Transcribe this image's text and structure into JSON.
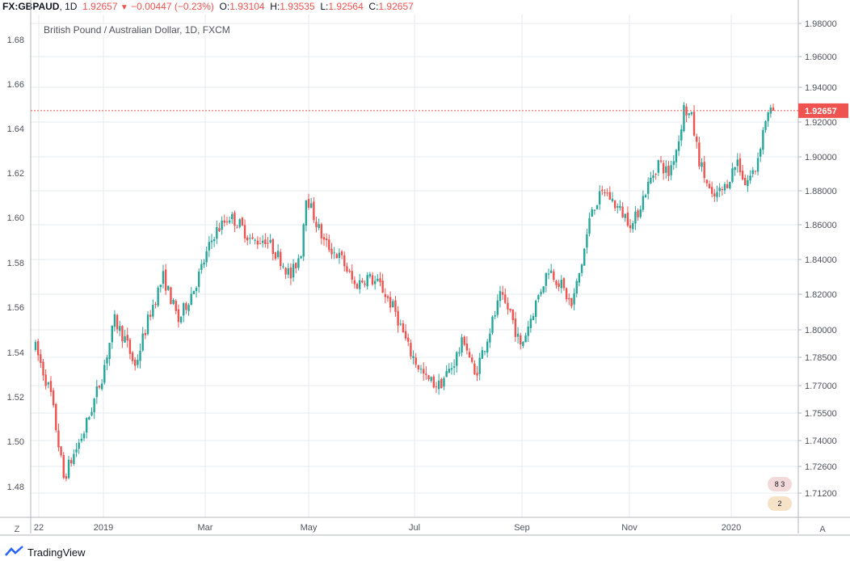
{
  "header": {
    "symbol": "FX:GBPAUD",
    "interval": "1D",
    "last": "1.92657",
    "change": "−0.00447 (−0.23%)",
    "o_label": "O:",
    "o_value": "1.93104",
    "h_label": "H:",
    "h_value": "1.93535",
    "l_label": "L:",
    "l_value": "1.92564",
    "c_label": "C:",
    "c_value": "1.92657"
  },
  "legend_title": "British Pound / Australian Dollar, 1D, FXCM",
  "footer": {
    "brand": "TradingView",
    "zoom_button": "Z",
    "auto_button": "A"
  },
  "badges": [
    "8 3",
    "2"
  ],
  "chart_data": {
    "type": "candlestick",
    "title": "British Pound / Australian Dollar, 1D, FXCM",
    "right_axis": {
      "ticks": [
        "1.98000",
        "1.96000",
        "1.94000",
        "1.92000",
        "1.90000",
        "1.88000",
        "1.86000",
        "1.84000",
        "1.82000",
        "1.80000",
        "1.78500",
        "1.77000",
        "1.75500",
        "1.74000",
        "1.72600",
        "1.71200"
      ],
      "type": "log"
    },
    "left_axis": {
      "ticks": [
        "1.68",
        "1.66",
        "1.64",
        "1.62",
        "1.60",
        "1.58",
        "1.56",
        "1.54",
        "1.52",
        "1.50",
        "1.48"
      ]
    },
    "x_ticks": [
      "22",
      "2019",
      "Mar",
      "May",
      "Jul",
      "Sep",
      "Nov",
      "2020"
    ],
    "last_price": 1.92657,
    "last_price_label": "1.92657",
    "ylim": [
      1.7,
      1.985
    ],
    "grid": true,
    "colors": {
      "up": "#26a69a",
      "down": "#ef5350",
      "grid": "#e6eaf0",
      "axis_text": "#50535e",
      "price_line": "#ef5350"
    },
    "path": [
      [
        0,
        1.79
      ],
      [
        12,
        1.765
      ],
      [
        22,
        1.72
      ],
      [
        38,
        1.745
      ],
      [
        52,
        1.775
      ],
      [
        62,
        1.805
      ],
      [
        70,
        1.795
      ],
      [
        78,
        1.78
      ],
      [
        90,
        1.81
      ],
      [
        100,
        1.83
      ],
      [
        112,
        1.805
      ],
      [
        125,
        1.825
      ],
      [
        140,
        1.855
      ],
      [
        152,
        1.865
      ],
      [
        160,
        1.86
      ],
      [
        170,
        1.85
      ],
      [
        180,
        1.852
      ],
      [
        192,
        1.84
      ],
      [
        200,
        1.83
      ],
      [
        208,
        1.845
      ],
      [
        212,
        1.878
      ],
      [
        218,
        1.865
      ],
      [
        226,
        1.85
      ],
      [
        240,
        1.84
      ],
      [
        250,
        1.825
      ],
      [
        260,
        1.83
      ],
      [
        270,
        1.825
      ],
      [
        282,
        1.81
      ],
      [
        292,
        1.79
      ],
      [
        306,
        1.773
      ],
      [
        316,
        1.77
      ],
      [
        326,
        1.78
      ],
      [
        336,
        1.795
      ],
      [
        344,
        1.775
      ],
      [
        356,
        1.8
      ],
      [
        364,
        1.818
      ],
      [
        372,
        1.81
      ],
      [
        380,
        1.79
      ],
      [
        392,
        1.815
      ],
      [
        402,
        1.835
      ],
      [
        412,
        1.825
      ],
      [
        420,
        1.813
      ],
      [
        428,
        1.838
      ],
      [
        436,
        1.87
      ],
      [
        446,
        1.88
      ],
      [
        456,
        1.87
      ],
      [
        468,
        1.86
      ],
      [
        478,
        1.88
      ],
      [
        488,
        1.897
      ],
      [
        496,
        1.89
      ],
      [
        504,
        1.91
      ],
      [
        508,
        1.928
      ],
      [
        514,
        1.922
      ],
      [
        520,
        1.898
      ],
      [
        530,
        1.875
      ],
      [
        540,
        1.882
      ],
      [
        550,
        1.898
      ],
      [
        556,
        1.884
      ],
      [
        564,
        1.893
      ],
      [
        572,
        1.922
      ],
      [
        578,
        1.9266
      ]
    ],
    "candle_count": 290
  }
}
